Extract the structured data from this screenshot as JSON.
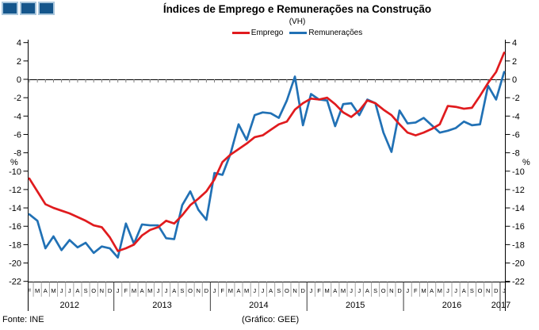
{
  "header": {
    "title": "Índices de Emprego e Remunerações na Construção",
    "subtitle": "(VH)"
  },
  "footer": {
    "source": "Fonte: INE",
    "credit": "(Gráfico: GEE)"
  },
  "chart_data": {
    "type": "line",
    "title": "Índices de Emprego e Remunerações na Construção",
    "subtitle": "(VH)",
    "ylabel": "%",
    "ylim": [
      -22,
      4
    ],
    "ytick_step": 2,
    "zero_line": true,
    "legend_position": "top",
    "x_months": [
      "F",
      "M",
      "A",
      "M",
      "J",
      "J",
      "A",
      "S",
      "O",
      "N",
      "D",
      "J",
      "F",
      "M",
      "A",
      "M",
      "J",
      "J",
      "A",
      "S",
      "O",
      "N",
      "D",
      "J",
      "F",
      "M",
      "A",
      "M",
      "J",
      "J",
      "A",
      "S",
      "O",
      "N",
      "D",
      "J",
      "F",
      "M",
      "A",
      "M",
      "J",
      "J",
      "A",
      "S",
      "O",
      "N",
      "D",
      "J",
      "F",
      "M",
      "A",
      "M",
      "J",
      "J",
      "A",
      "S",
      "O",
      "N",
      "D",
      "J"
    ],
    "years": [
      {
        "label": "2012",
        "months": 11
      },
      {
        "label": "2013",
        "months": 12
      },
      {
        "label": "2014",
        "months": 12
      },
      {
        "label": "2015",
        "months": 12
      },
      {
        "label": "2016",
        "months": 12
      },
      {
        "label": "2017",
        "months": 1
      }
    ],
    "series": [
      {
        "name": "Emprego",
        "color": "#e01b1e",
        "values": [
          -10.8,
          -12.2,
          -13.6,
          -14.0,
          -14.3,
          -14.6,
          -15.0,
          -15.4,
          -15.9,
          -16.1,
          -17.2,
          -18.7,
          -18.4,
          -18.0,
          -17.0,
          -16.4,
          -16.1,
          -15.4,
          -15.7,
          -14.8,
          -13.7,
          -13.0,
          -12.2,
          -10.9,
          -9.0,
          -8.2,
          -7.6,
          -7.0,
          -6.3,
          -6.1,
          -5.5,
          -4.9,
          -4.6,
          -3.3,
          -2.6,
          -2.1,
          -2.2,
          -2.0,
          -2.7,
          -3.6,
          -4.1,
          -3.4,
          -2.3,
          -2.6,
          -3.3,
          -3.9,
          -4.9,
          -5.8,
          -6.1,
          -5.8,
          -5.4,
          -4.9,
          -2.9,
          -3.0,
          -3.2,
          -3.1,
          -1.8,
          -0.4,
          0.8,
          2.9
        ]
      },
      {
        "name": "Remunerações",
        "color": "#2171b5",
        "values": [
          -14.7,
          -15.4,
          -18.4,
          -17.1,
          -18.6,
          -17.5,
          -18.3,
          -17.8,
          -18.9,
          -18.2,
          -18.4,
          -19.4,
          -15.7,
          -17.9,
          -15.8,
          -15.9,
          -15.9,
          -17.3,
          -17.4,
          -13.7,
          -12.2,
          -14.2,
          -15.3,
          -10.2,
          -10.4,
          -8.1,
          -4.9,
          -6.6,
          -3.9,
          -3.6,
          -3.7,
          -4.2,
          -2.3,
          0.3,
          -5.0,
          -1.6,
          -2.2,
          -2.3,
          -5.1,
          -2.7,
          -2.6,
          -3.9,
          -2.2,
          -2.6,
          -5.8,
          -7.9,
          -3.4,
          -4.8,
          -4.7,
          -4.2,
          -5.0,
          -5.8,
          -5.6,
          -5.3,
          -4.6,
          -5.0,
          -4.9,
          -0.7,
          -2.2,
          0.8
        ]
      }
    ]
  }
}
